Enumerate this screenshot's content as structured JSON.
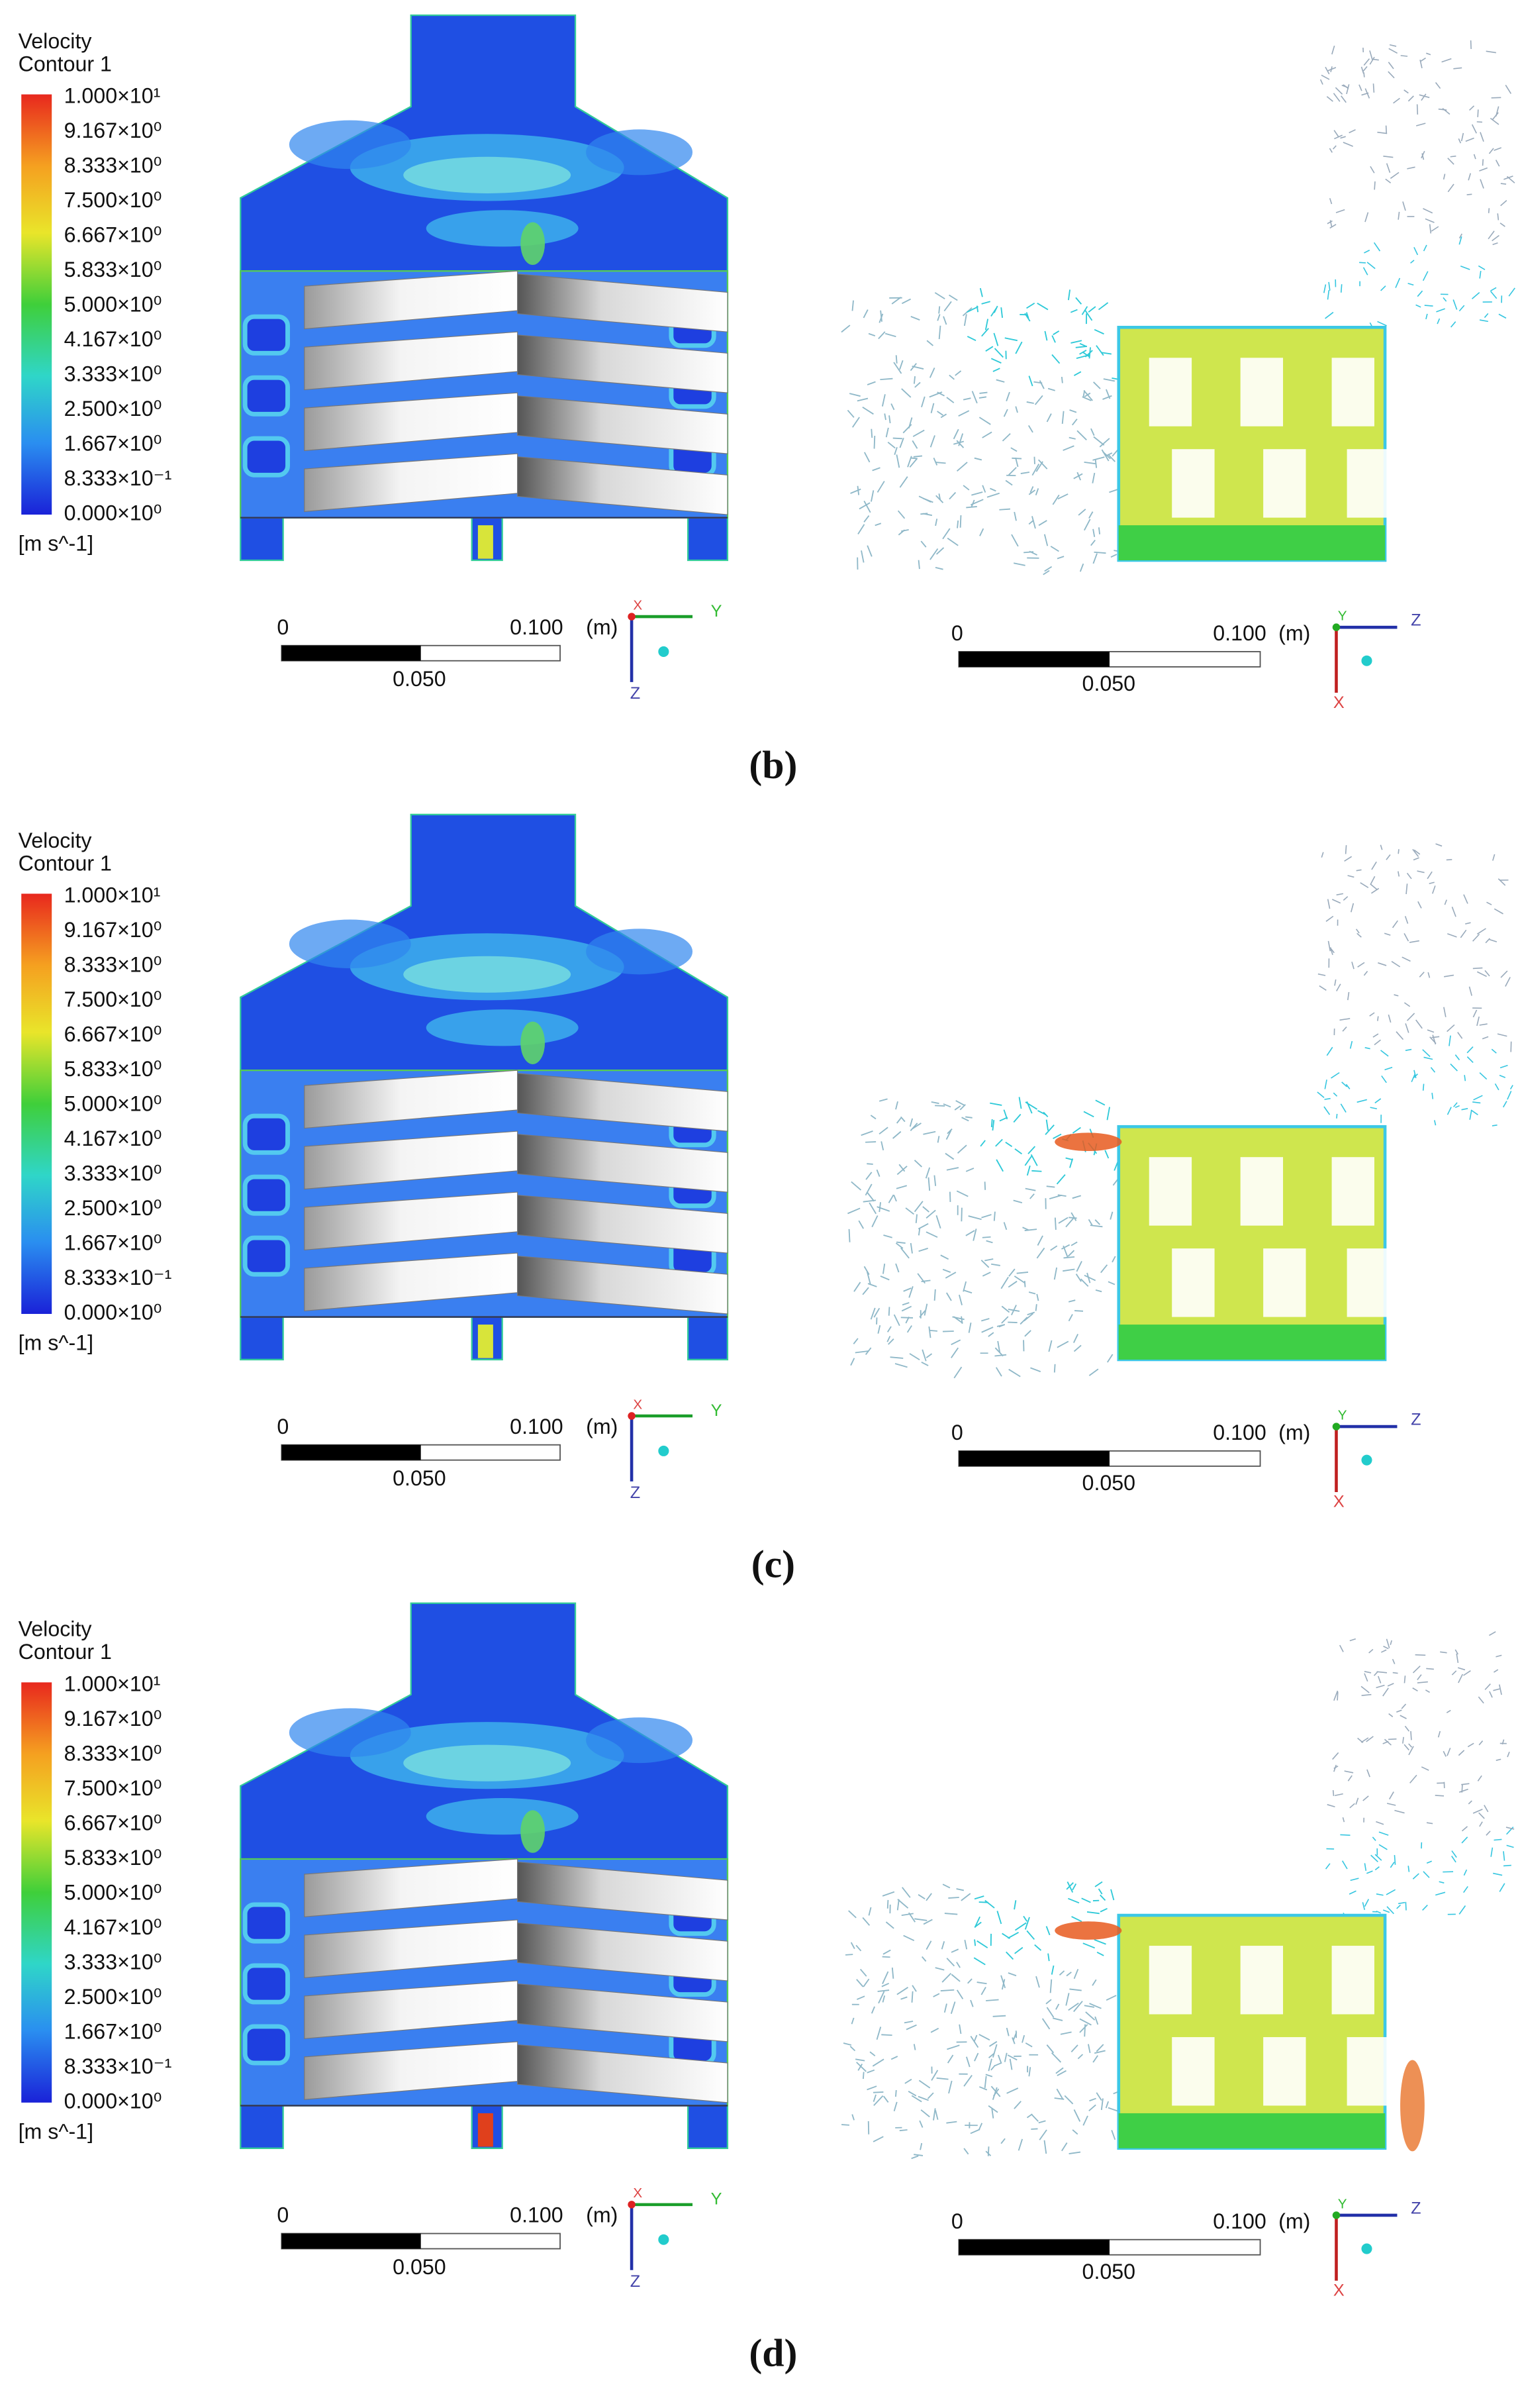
{
  "panels": [
    {
      "caption": "(b)",
      "legend": {
        "title": "Velocity",
        "subtitle": "Contour 1",
        "levels": [
          "1.000×10¹",
          "9.167×10⁰",
          "8.333×10⁰",
          "7.500×10⁰",
          "6.667×10⁰",
          "5.833×10⁰",
          "5.000×10⁰",
          "4.167×10⁰",
          "3.333×10⁰",
          "2.500×10⁰",
          "1.667×10⁰",
          "8.333×10⁻¹",
          "0.000×10⁰"
        ],
        "unit": "[m s^-1]"
      },
      "left_scale": {
        "start": "0",
        "end": "0.100",
        "unit": "(m)",
        "mid": "0.050",
        "axes": [
          "Y",
          "Z",
          "X"
        ]
      },
      "right_scale": {
        "start": "0",
        "end": "0.100",
        "unit": "(m)",
        "mid": "0.050",
        "axes": [
          "Z",
          "X",
          "Y"
        ]
      }
    },
    {
      "caption": "(c)",
      "legend": {
        "title": "Velocity",
        "subtitle": "Contour 1",
        "levels": [
          "1.000×10¹",
          "9.167×10⁰",
          "8.333×10⁰",
          "7.500×10⁰",
          "6.667×10⁰",
          "5.833×10⁰",
          "5.000×10⁰",
          "4.167×10⁰",
          "3.333×10⁰",
          "2.500×10⁰",
          "1.667×10⁰",
          "8.333×10⁻¹",
          "0.000×10⁰"
        ],
        "unit": "[m s^-1]"
      },
      "left_scale": {
        "start": "0",
        "end": "0.100",
        "unit": "(m)",
        "mid": "0.050",
        "axes": [
          "Y",
          "Z",
          "X"
        ]
      },
      "right_scale": {
        "start": "0",
        "end": "0.100",
        "unit": "(m)",
        "mid": "0.050",
        "axes": [
          "Z",
          "X",
          "Y"
        ]
      }
    },
    {
      "caption": "(d)",
      "legend": {
        "title": "Velocity",
        "subtitle": "Contour 1",
        "levels": [
          "1.000×10¹",
          "9.167×10⁰",
          "8.333×10⁰",
          "7.500×10⁰",
          "6.667×10⁰",
          "5.833×10⁰",
          "5.000×10⁰",
          "4.167×10⁰",
          "3.333×10⁰",
          "2.500×10⁰",
          "1.667×10⁰",
          "8.333×10⁻¹",
          "0.000×10⁰"
        ],
        "unit": "[m s^-1]"
      },
      "left_scale": {
        "start": "0",
        "end": "0.100",
        "unit": "(m)",
        "mid": "0.050",
        "axes": [
          "Y",
          "Z",
          "X"
        ]
      },
      "right_scale": {
        "start": "0",
        "end": "0.100",
        "unit": "(m)",
        "mid": "0.050",
        "axes": [
          "Z",
          "X",
          "Y"
        ]
      }
    }
  ]
}
